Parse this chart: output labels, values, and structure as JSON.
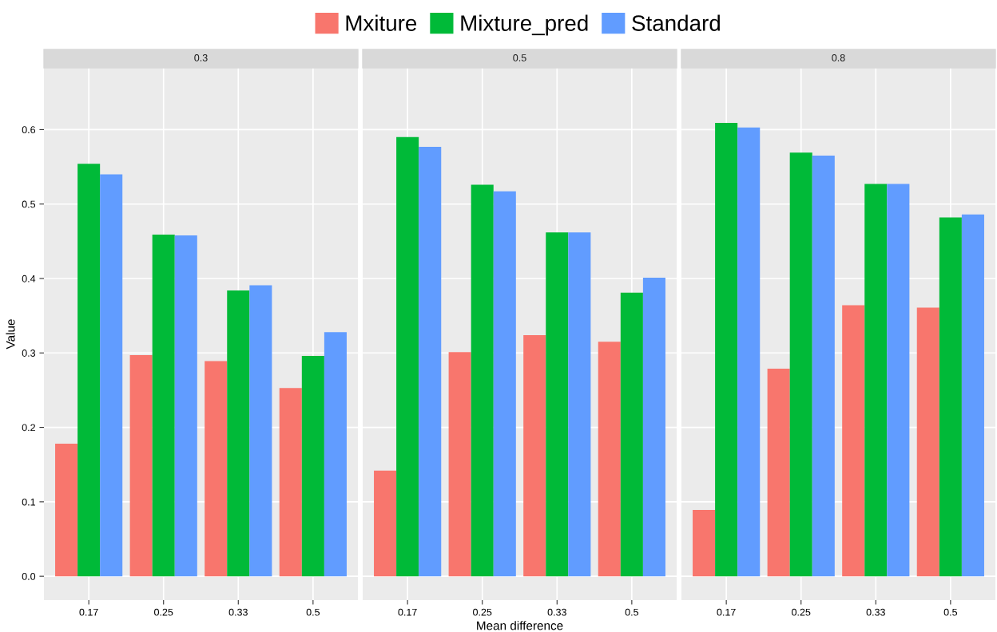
{
  "chart_data": [
    {
      "type": "bar",
      "title": "0.3",
      "ylabel": "Value",
      "categories": [
        "0.17",
        "0.25",
        "0.33",
        "0.5"
      ],
      "ylim": [
        -0.032,
        0.683
      ],
      "yticks": [
        {
          "value": 0,
          "label": "0.0"
        },
        0.1,
        0.2,
        0.3,
        0.4,
        0.5,
        0.6
      ],
      "grid": true,
      "legend": "top",
      "series": [
        {
          "name": "Mxiture",
          "color": "#f8766d",
          "values": [
            0.178,
            0.297,
            0.289,
            0.253
          ]
        },
        {
          "name": "Mixture_pred",
          "color": "#00ba38",
          "values": [
            0.554,
            0.459,
            0.384,
            0.296
          ]
        },
        {
          "name": "Standard",
          "color": "#619cff",
          "values": [
            0.54,
            0.458,
            0.391,
            0.328
          ]
        }
      ]
    },
    {
      "type": "bar",
      "title": "0.5",
      "xlabel": "Mean difference",
      "categories": [
        "0.17",
        "0.25",
        "0.33",
        "0.5"
      ],
      "ylim": [
        -0.032,
        0.683
      ],
      "yticks": [
        {
          "value": 0,
          "label": null
        },
        {
          "value": 0.1,
          "label": null
        },
        {
          "value": 0.2,
          "label": null
        },
        {
          "value": 0.3,
          "label": null
        },
        {
          "value": 0.4,
          "label": null
        },
        {
          "value": 0.5,
          "label": null
        },
        {
          "value": 0.6,
          "label": null
        }
      ],
      "grid": true,
      "tick_labels": "x",
      "series": [
        {
          "color": "#f8766d",
          "values": [
            0.142,
            0.301,
            0.324,
            0.315
          ]
        },
        {
          "color": "#00ba38",
          "values": [
            0.59,
            0.526,
            0.462,
            0.381
          ]
        },
        {
          "color": "#619cff",
          "values": [
            0.577,
            0.517,
            0.462,
            0.401
          ]
        }
      ]
    },
    {
      "type": "bar",
      "title": "0.8",
      "categories": [
        "0.17",
        "0.25",
        "0.33",
        "0.5"
      ],
      "ylim": [
        -0.032,
        0.683
      ],
      "yticks": [
        {
          "value": 0,
          "label": null
        },
        {
          "value": 0.1,
          "label": null
        },
        {
          "value": 0.2,
          "label": null
        },
        {
          "value": 0.3,
          "label": null
        },
        {
          "value": 0.4,
          "label": null
        },
        {
          "value": 0.5,
          "label": null
        },
        {
          "value": 0.6,
          "label": null
        }
      ],
      "grid": true,
      "tick_labels": "x",
      "series": [
        {
          "color": "#f8766d",
          "values": [
            0.089,
            0.279,
            0.364,
            0.361
          ]
        },
        {
          "color": "#00ba38",
          "values": [
            0.609,
            0.569,
            0.527,
            0.482
          ]
        },
        {
          "color": "#619cff",
          "values": [
            0.603,
            0.565,
            0.527,
            0.486
          ]
        }
      ]
    }
  ]
}
